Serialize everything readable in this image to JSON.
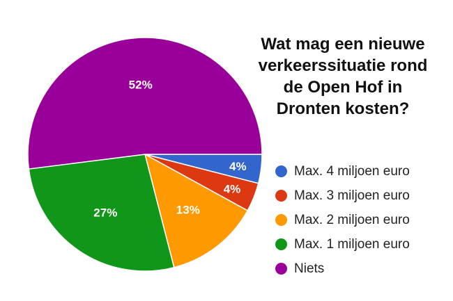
{
  "chart_data": {
    "type": "pie",
    "title_lines": [
      "Wat mag een nieuwe",
      "verkeerssituatie rond",
      "de Open Hof in",
      "Dronten kosten?"
    ],
    "slices": [
      {
        "label": "Max. 4 miljoen euro",
        "value": 4,
        "display": "4%",
        "color": "#3366cc"
      },
      {
        "label": "Max. 3 miljoen euro",
        "value": 4,
        "display": "4%",
        "color": "#dc3912"
      },
      {
        "label": "Max. 2 miljoen euro",
        "value": 13,
        "display": "13%",
        "color": "#ff9900"
      },
      {
        "label": "Max. 1 miljoen euro",
        "value": 27,
        "display": "27%",
        "color": "#109618"
      },
      {
        "label": "Niets",
        "value": 52,
        "display": "52%",
        "color": "#990099"
      }
    ],
    "start_angle_deg": 90,
    "direction": "clockwise",
    "legend_position": "right"
  }
}
